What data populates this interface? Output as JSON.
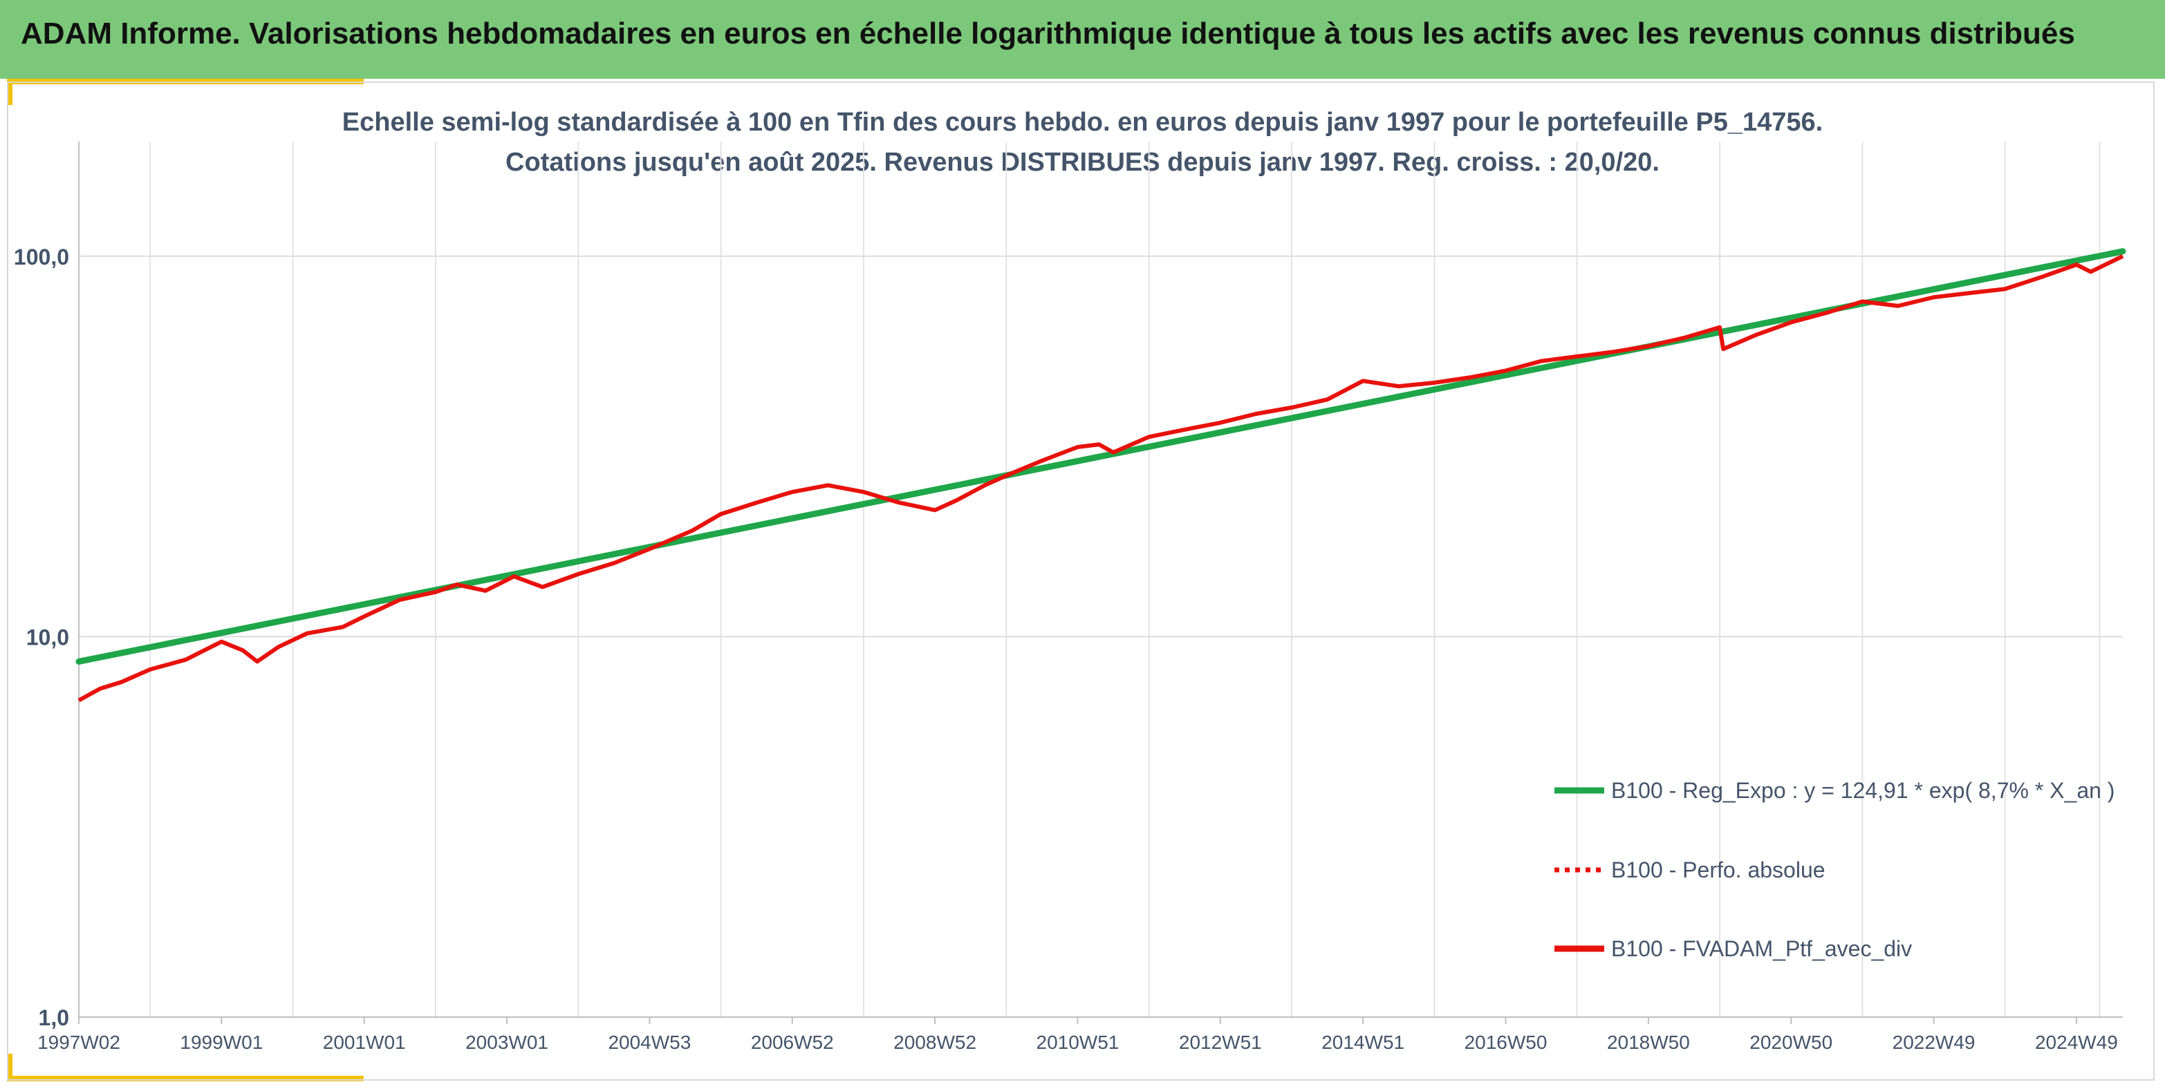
{
  "header": {
    "title": "ADAM Informe. Valorisations hebdomadaires en euros en échelle logarithmique identique à tous les actifs avec les revenus connus distribués"
  },
  "colors": {
    "header_bg": "#7cc87a",
    "accent": "#f2c200",
    "green": "#1fa64a",
    "red": "#e8120c",
    "text": "#44546a"
  },
  "chart_data": {
    "type": "line",
    "title_lines": [
      "Echelle semi-log standardisée à 100 en Tfin des cours hebdo. en euros depuis janv 1997 pour le portefeuille P5_14756.",
      "Cotations jusqu'en août 2025. Revenus DISTRIBUES depuis janv 1997. Reg. croiss. : 20,0/20."
    ],
    "y_scale": "log",
    "ylim": [
      1,
      200
    ],
    "y_ticks": [
      "100,0",
      "10,0",
      "1,0"
    ],
    "y_tick_values": [
      100,
      10,
      1
    ],
    "xlim": [
      1997.0,
      2025.65
    ],
    "x_ticks": [
      "1997W02",
      "1999W01",
      "2001W01",
      "2003W01",
      "2004W53",
      "2006W52",
      "2008W52",
      "2010W51",
      "2012W51",
      "2014W51",
      "2016W50",
      "2018W50",
      "2020W50",
      "2022W49",
      "2024W49"
    ],
    "x_tick_values": [
      1997.0,
      1999.0,
      2001.0,
      2003.0,
      2005.0,
      2007.0,
      2009.0,
      2011.0,
      2013.0,
      2015.0,
      2017.0,
      2019.0,
      2021.0,
      2023.0,
      2025.0
    ],
    "grid": "vertical and horizontal major",
    "legend_position": "lower-right",
    "legend": [
      {
        "label": "B100 - Reg_Expo : y = 124,91 * exp( 8,7% *  X_an )",
        "style": "solid-green"
      },
      {
        "label": "B100 - Perfo. absolue",
        "style": "dotted-red"
      },
      {
        "label": "B100 - FVADAM_Ptf_avec_div",
        "style": "solid-red"
      }
    ],
    "series": [
      {
        "name": "B100 - Reg_Expo : y = 124,91 * exp( 8,7% *  X_an )",
        "x": [
          1997.0,
          2025.65
        ],
        "y": [
          8.6,
          103.0
        ]
      },
      {
        "name": "B100 - FVADAM_Ptf_avec_div",
        "x": [
          1997.0,
          1997.3,
          1997.6,
          1998.0,
          1998.5,
          1999.0,
          1999.3,
          1999.5,
          1999.8,
          2000.2,
          2000.7,
          2001.0,
          2001.5,
          2002.0,
          2002.3,
          2002.7,
          2003.1,
          2003.5,
          2004.0,
          2004.5,
          2005.0,
          2005.6,
          2006.0,
          2006.5,
          2007.0,
          2007.5,
          2008.0,
          2008.5,
          2009.0,
          2009.3,
          2009.7,
          2010.0,
          2010.5,
          2011.0,
          2011.3,
          2011.5,
          2012.0,
          2012.5,
          2013.0,
          2013.5,
          2014.0,
          2014.5,
          2015.0,
          2015.5,
          2016.0,
          2016.5,
          2017.0,
          2017.5,
          2018.0,
          2018.5,
          2019.0,
          2019.5,
          2020.0,
          2020.05,
          2020.5,
          2021.0,
          2021.5,
          2022.0,
          2022.5,
          2023.0,
          2023.5,
          2024.0,
          2024.5,
          2025.0,
          2025.2,
          2025.65
        ],
        "y": [
          6.8,
          7.3,
          7.6,
          8.2,
          8.7,
          9.7,
          9.2,
          8.6,
          9.4,
          10.2,
          10.6,
          11.3,
          12.5,
          13.1,
          13.7,
          13.2,
          14.4,
          13.5,
          14.6,
          15.6,
          17.0,
          19.0,
          21.0,
          22.5,
          24.0,
          25.0,
          24.0,
          22.5,
          21.5,
          22.8,
          25.0,
          26.5,
          29.0,
          31.5,
          32.0,
          30.5,
          33.5,
          35.0,
          36.5,
          38.5,
          40.0,
          42.0,
          47.0,
          45.5,
          46.5,
          48.0,
          50.0,
          53.0,
          54.5,
          56.0,
          58.0,
          61.0,
          65.0,
          57.0,
          62.0,
          67.0,
          71.0,
          76.0,
          74.0,
          78.0,
          80.0,
          82.0,
          88.0,
          95.0,
          91.0,
          100.0
        ]
      }
    ]
  }
}
